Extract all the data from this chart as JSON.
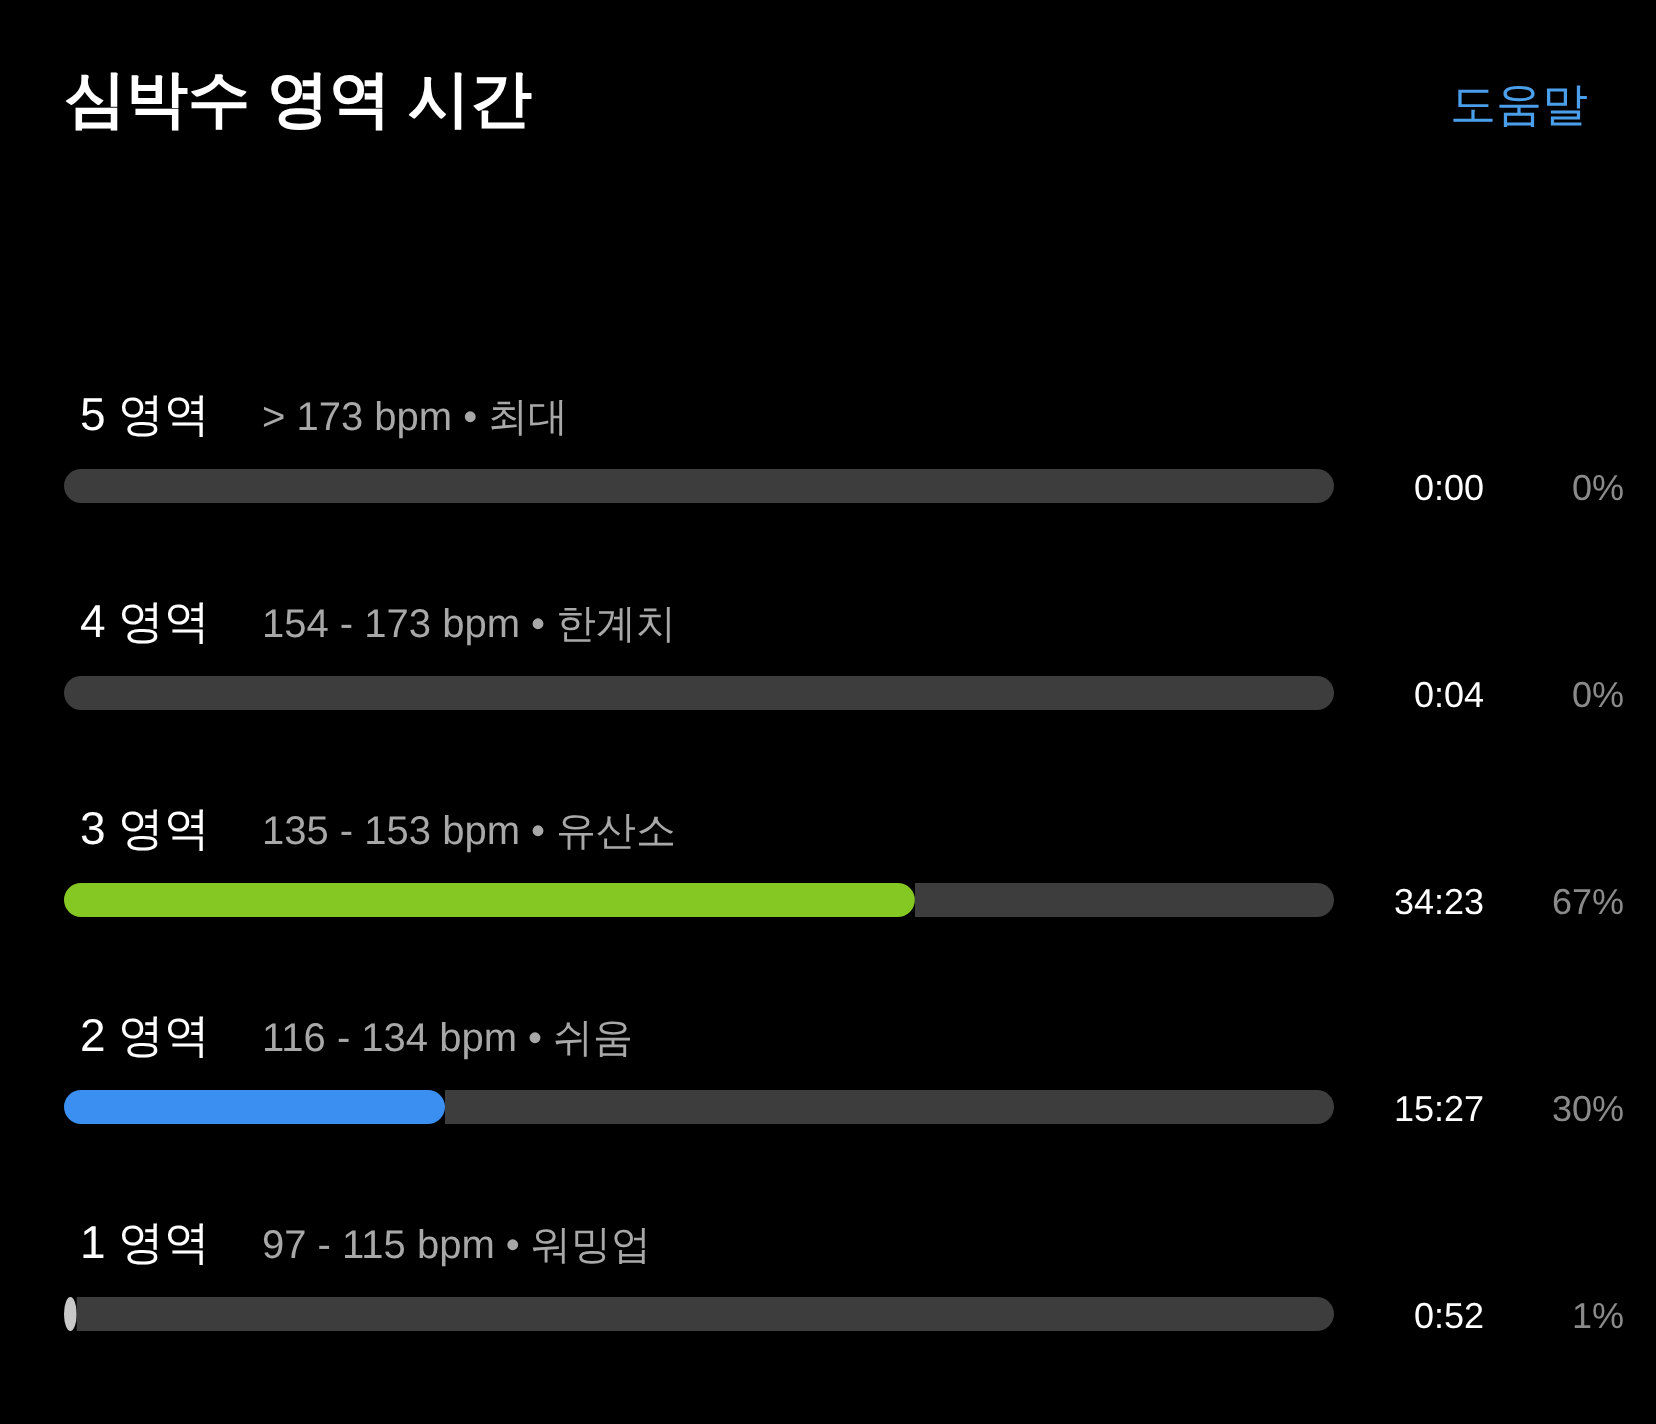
{
  "chart_data": {
    "type": "bar",
    "orientation": "horizontal",
    "stacked": true,
    "title": "심박수 영역 시간",
    "categories": [
      "5 영역",
      "4 영역",
      "3 영역",
      "2 영역",
      "1 영역"
    ],
    "series": [
      {
        "values": [
          0,
          0,
          67,
          30,
          1
        ],
        "colors": [
          "#9a9a9a",
          "#9a9a9a",
          "#86c823",
          "#3b8ff0",
          "#c8c8c8"
        ],
        "value_labels": [
          "0%",
          "0%",
          "67%",
          "30%",
          "1%"
        ]
      },
      {
        "values": [
          100,
          100,
          33,
          70,
          99
        ],
        "color": "#3d3d3d"
      }
    ],
    "xlim": [
      0,
      100
    ],
    "annotations": [
      "> 173 bpm • 최대",
      "154 - 173 bpm • 한계치",
      "135 - 153 bpm • 유산소",
      "116 - 134 bpm • 쉬움",
      "97 - 115 bpm • 워밍업",
      "0:00",
      "0:04",
      "34:23",
      "15:27",
      "0:52",
      "도움말"
    ]
  }
}
